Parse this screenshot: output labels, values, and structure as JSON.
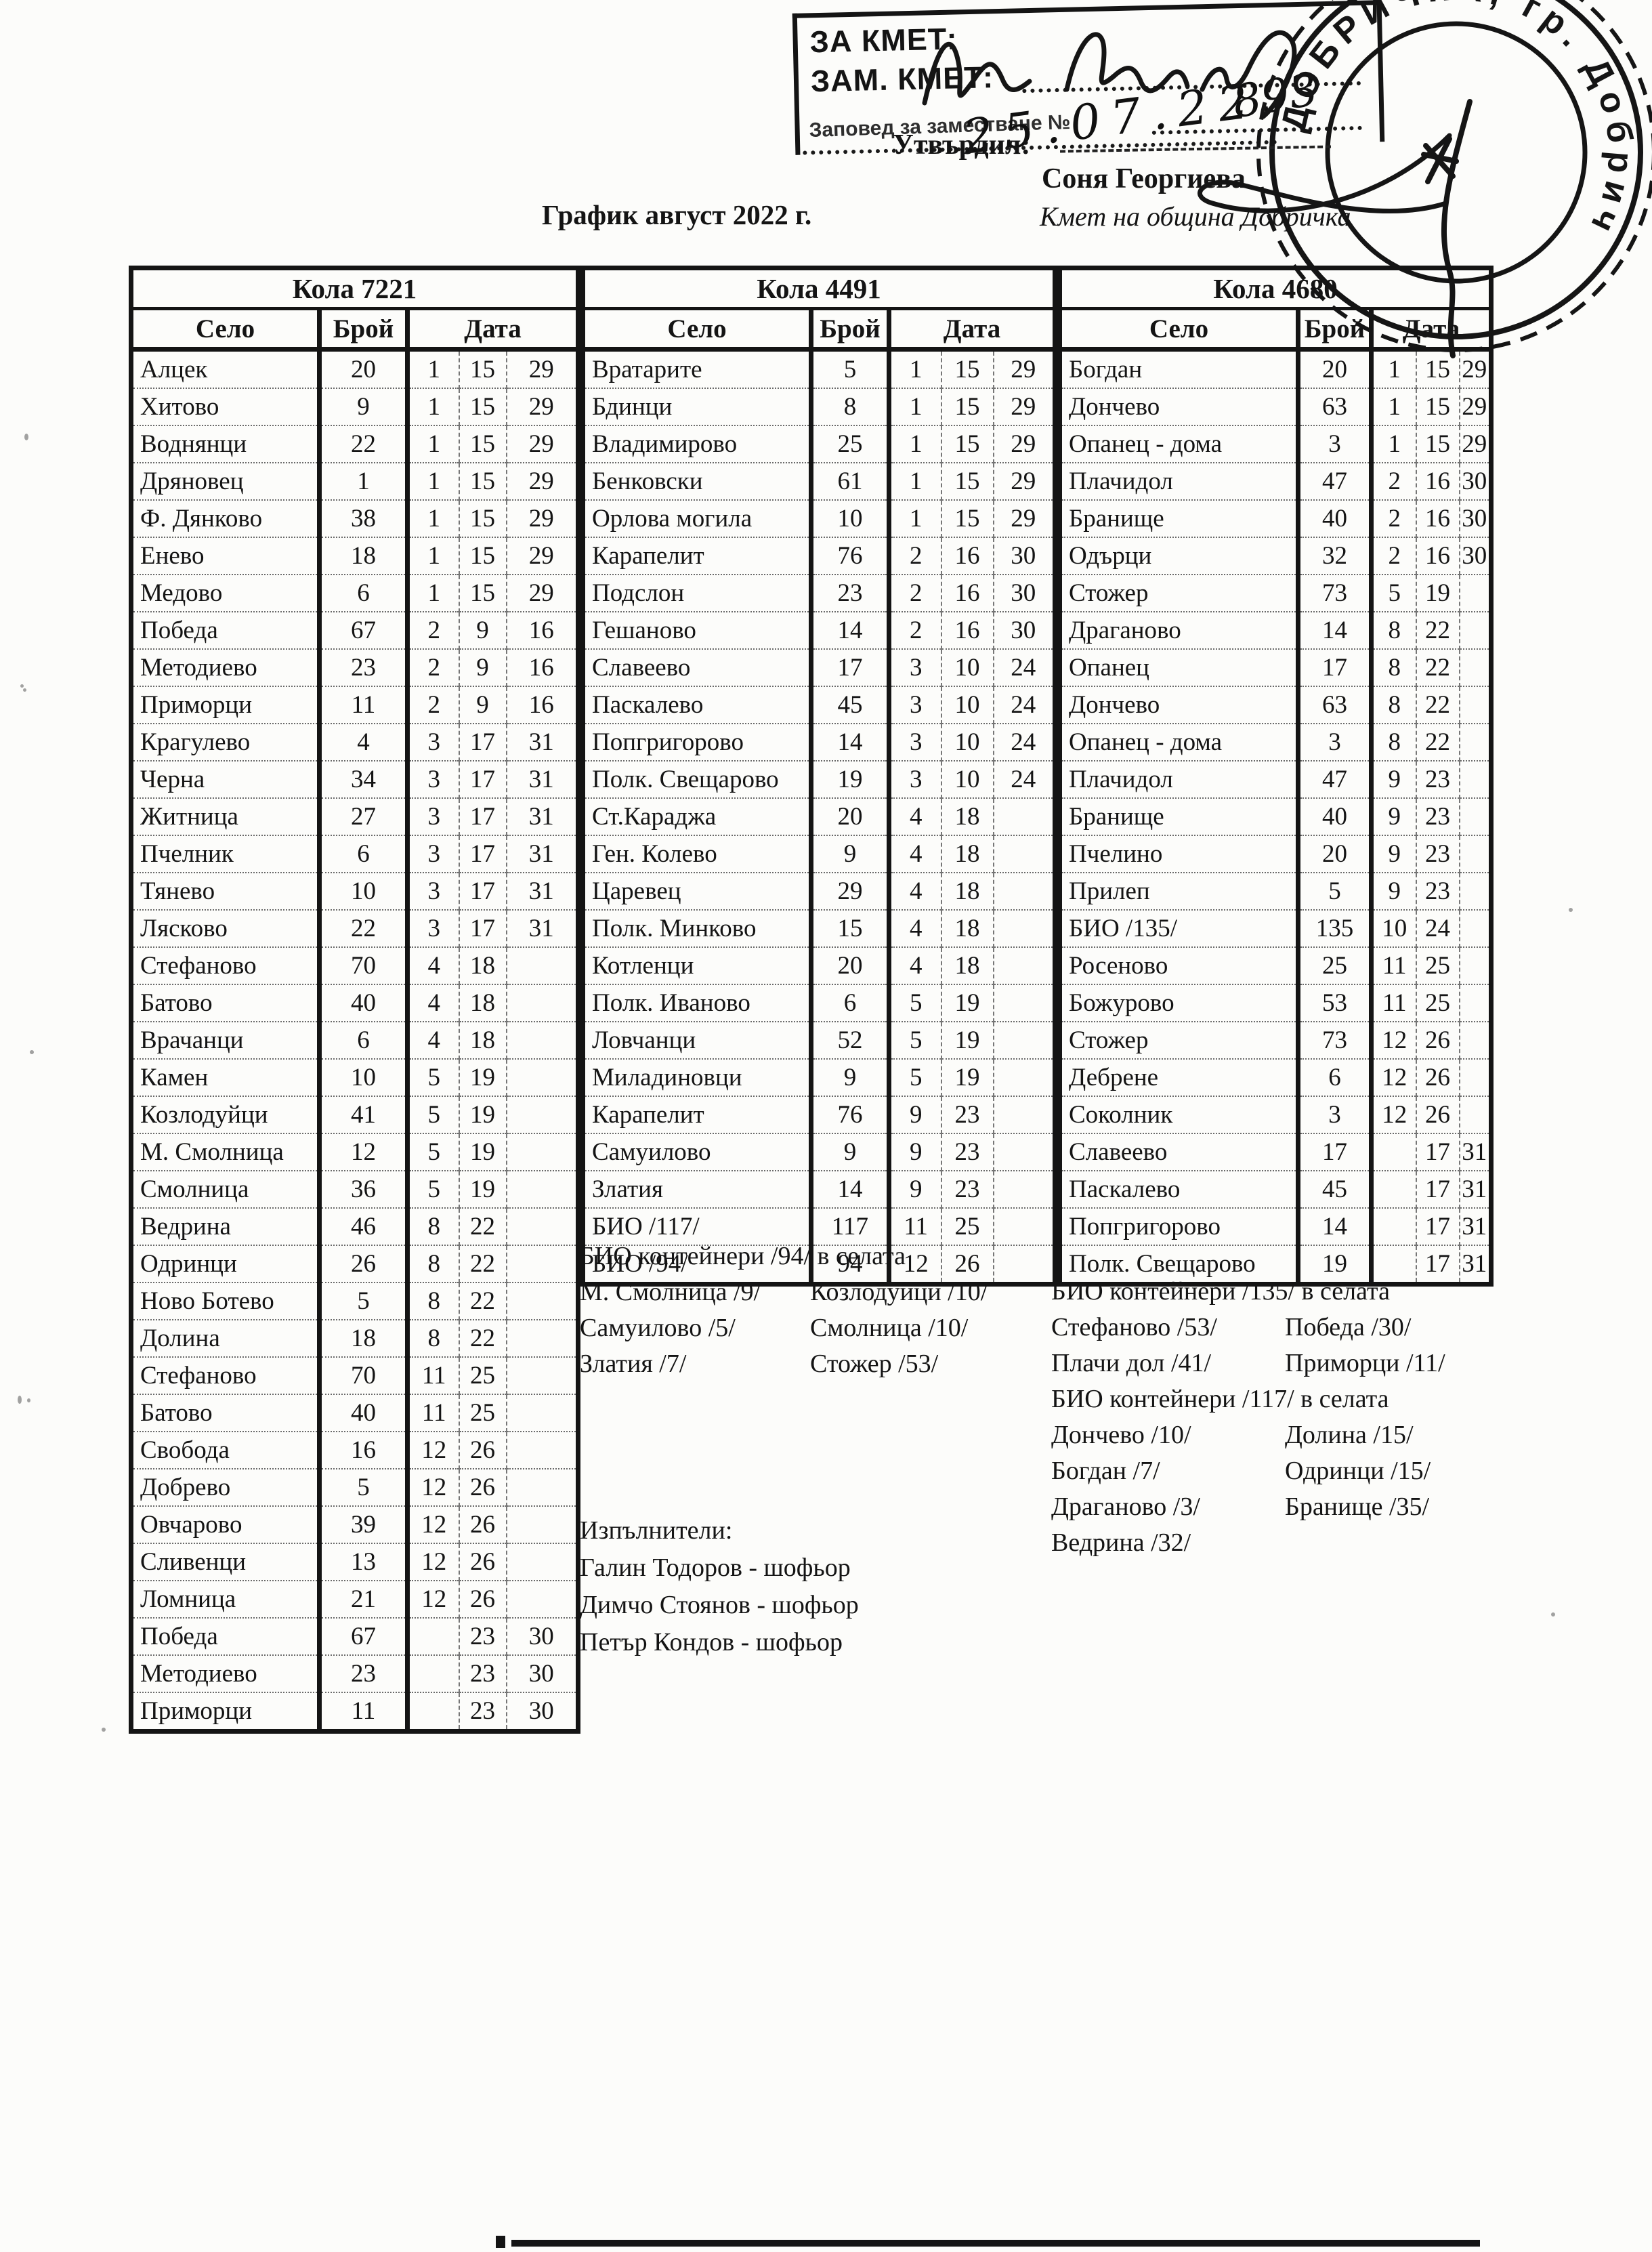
{
  "page": {
    "title": "График август 2022 г.",
    "approval": {
      "approved_label": "Утвърдил:",
      "approver_name": "Соня Георгиева",
      "approver_title": "Кмет  на община Добричка"
    },
    "stamp_box": {
      "line1": "ЗА КМЕТ:",
      "line2": "ЗАМ. КМЕТ:",
      "line3": "Заповед за заместване №",
      "handwritten_number": "893",
      "handwritten_date": "25.07.22"
    },
    "seal": {
      "text": "ДОБРИЧКА, гр. Добрич"
    }
  },
  "tables": [
    {
      "title": "Кола 7221",
      "columns": [
        "Село",
        "Брой",
        "Дата"
      ],
      "rows": [
        [
          "Алцек",
          "20",
          "1",
          "15",
          "29"
        ],
        [
          "Хитово",
          "9",
          "1",
          "15",
          "29"
        ],
        [
          "Воднянци",
          "22",
          "1",
          "15",
          "29"
        ],
        [
          "Дряновец",
          "1",
          "1",
          "15",
          "29"
        ],
        [
          "Ф. Дянково",
          "38",
          "1",
          "15",
          "29"
        ],
        [
          "Енево",
          "18",
          "1",
          "15",
          "29"
        ],
        [
          "Медово",
          "6",
          "1",
          "15",
          "29"
        ],
        [
          "Победа",
          "67",
          "2",
          "9",
          "16"
        ],
        [
          "Методиево",
          "23",
          "2",
          "9",
          "16"
        ],
        [
          "Приморци",
          "11",
          "2",
          "9",
          "16"
        ],
        [
          "Крагулево",
          "4",
          "3",
          "17",
          "31"
        ],
        [
          "Черна",
          "34",
          "3",
          "17",
          "31"
        ],
        [
          "Житница",
          "27",
          "3",
          "17",
          "31"
        ],
        [
          "Пчелник",
          "6",
          "3",
          "17",
          "31"
        ],
        [
          "Тянево",
          "10",
          "3",
          "17",
          "31"
        ],
        [
          "Лясково",
          "22",
          "3",
          "17",
          "31"
        ],
        [
          "Стефаново",
          "70",
          "4",
          "18",
          ""
        ],
        [
          "Батово",
          "40",
          "4",
          "18",
          ""
        ],
        [
          "Врачанци",
          "6",
          "4",
          "18",
          ""
        ],
        [
          "Камен",
          "10",
          "5",
          "19",
          ""
        ],
        [
          "Козлодуйци",
          "41",
          "5",
          "19",
          ""
        ],
        [
          "М. Смолница",
          "12",
          "5",
          "19",
          ""
        ],
        [
          "Смолница",
          "36",
          "5",
          "19",
          ""
        ],
        [
          "Ведрина",
          "46",
          "8",
          "22",
          ""
        ],
        [
          "Одринци",
          "26",
          "8",
          "22",
          ""
        ],
        [
          "Ново Ботево",
          "5",
          "8",
          "22",
          ""
        ],
        [
          "Долина",
          "18",
          "8",
          "22",
          ""
        ],
        [
          "Стефаново",
          "70",
          "11",
          "25",
          ""
        ],
        [
          "Батово",
          "40",
          "11",
          "25",
          ""
        ],
        [
          "Свобода",
          "16",
          "12",
          "26",
          ""
        ],
        [
          "Добрево",
          "5",
          "12",
          "26",
          ""
        ],
        [
          "Овчарово",
          "39",
          "12",
          "26",
          ""
        ],
        [
          "Сливенци",
          "13",
          "12",
          "26",
          ""
        ],
        [
          "Ломница",
          "21",
          "12",
          "26",
          ""
        ],
        [
          "Победа",
          "67",
          "",
          "23",
          "30"
        ],
        [
          "Методиево",
          "23",
          "",
          "23",
          "30"
        ],
        [
          "Приморци",
          "11",
          "",
          "23",
          "30"
        ]
      ]
    },
    {
      "title": "Кола 4491",
      "columns": [
        "Село",
        "Брой",
        "Дата"
      ],
      "rows": [
        [
          "Вратарите",
          "5",
          "1",
          "15",
          "29"
        ],
        [
          "Бдинци",
          "8",
          "1",
          "15",
          "29"
        ],
        [
          "Владимирово",
          "25",
          "1",
          "15",
          "29"
        ],
        [
          "Бенковски",
          "61",
          "1",
          "15",
          "29"
        ],
        [
          "Орлова могила",
          "10",
          "1",
          "15",
          "29"
        ],
        [
          "Карапелит",
          "76",
          "2",
          "16",
          "30"
        ],
        [
          "Подслон",
          "23",
          "2",
          "16",
          "30"
        ],
        [
          "Гешаново",
          "14",
          "2",
          "16",
          "30"
        ],
        [
          "Славеево",
          "17",
          "3",
          "10",
          "24"
        ],
        [
          "Паскалево",
          "45",
          "3",
          "10",
          "24"
        ],
        [
          "Попгригорово",
          "14",
          "3",
          "10",
          "24"
        ],
        [
          "Полк. Свещарово",
          "19",
          "3",
          "10",
          "24"
        ],
        [
          "Ст.Караджа",
          "20",
          "4",
          "18",
          ""
        ],
        [
          "Ген. Колево",
          "9",
          "4",
          "18",
          ""
        ],
        [
          "Царевец",
          "29",
          "4",
          "18",
          ""
        ],
        [
          "Полк. Минково",
          "15",
          "4",
          "18",
          ""
        ],
        [
          "Котленци",
          "20",
          "4",
          "18",
          ""
        ],
        [
          "Полк. Иваново",
          "6",
          "5",
          "19",
          ""
        ],
        [
          "Ловчанци",
          "52",
          "5",
          "19",
          ""
        ],
        [
          "Миладиновци",
          "9",
          "5",
          "19",
          ""
        ],
        [
          "Карапелит",
          "76",
          "9",
          "23",
          ""
        ],
        [
          "Самуилово",
          "9",
          "9",
          "23",
          ""
        ],
        [
          "Златия",
          "14",
          "9",
          "23",
          ""
        ],
        [
          "БИО /117/",
          "117",
          "11",
          "25",
          ""
        ],
        [
          "БИО /94/",
          "94",
          "12",
          "26",
          ""
        ]
      ]
    },
    {
      "title": "Кола 4680",
      "columns": [
        "Село",
        "Брой",
        "Дата"
      ],
      "rows": [
        [
          "Богдан",
          "20",
          "1",
          "15",
          "29"
        ],
        [
          "Дончево",
          "63",
          "1",
          "15",
          "29"
        ],
        [
          "Опанец - дома",
          "3",
          "1",
          "15",
          "29"
        ],
        [
          "Плачидол",
          "47",
          "2",
          "16",
          "30"
        ],
        [
          "Бранище",
          "40",
          "2",
          "16",
          "30"
        ],
        [
          "Одърци",
          "32",
          "2",
          "16",
          "30"
        ],
        [
          "Стожер",
          "73",
          "5",
          "19",
          ""
        ],
        [
          "Драганово",
          "14",
          "8",
          "22",
          ""
        ],
        [
          "Опанец",
          "17",
          "8",
          "22",
          ""
        ],
        [
          "Дончево",
          "63",
          "8",
          "22",
          ""
        ],
        [
          "Опанец - дома",
          "3",
          "8",
          "22",
          ""
        ],
        [
          "Плачидол",
          "47",
          "9",
          "23",
          ""
        ],
        [
          "Бранище",
          "40",
          "9",
          "23",
          ""
        ],
        [
          "Пчелино",
          "20",
          "9",
          "23",
          ""
        ],
        [
          "Прилеп",
          "5",
          "9",
          "23",
          ""
        ],
        [
          "БИО /135/",
          "135",
          "10",
          "24",
          ""
        ],
        [
          "Росеново",
          "25",
          "11",
          "25",
          ""
        ],
        [
          "Божурово",
          "53",
          "11",
          "25",
          ""
        ],
        [
          "Стожер",
          "73",
          "12",
          "26",
          ""
        ],
        [
          "Дебрене",
          "6",
          "12",
          "26",
          ""
        ],
        [
          "Соколник",
          "3",
          "12",
          "26",
          ""
        ],
        [
          "Славеево",
          "17",
          "",
          "17",
          "31"
        ],
        [
          "Паскалево",
          "45",
          "",
          "17",
          "31"
        ],
        [
          "Попгригорово",
          "14",
          "",
          "17",
          "31"
        ],
        [
          "Полк. Свещарово",
          "19",
          "",
          "17",
          "31"
        ]
      ]
    }
  ],
  "notes_middle": {
    "header": "БИО контейнери /94/ в селата",
    "items": [
      [
        "М. Смолница /9/",
        "Козлодуйци /10/"
      ],
      [
        "Самуилово /5/",
        "Смолница /10/"
      ],
      [
        "Златия /7/",
        "Стожер /53/"
      ]
    ]
  },
  "notes_right": {
    "bio135_header": "БИО контейнери /135/ в селата",
    "items135": [
      [
        "Стефаново /53/",
        "Победа /30/"
      ],
      [
        "Плачи дол /41/",
        "Приморци /11/"
      ]
    ],
    "bio117_header": "БИО контейнери /117/ в селата",
    "items117": [
      [
        "Дончево /10/",
        "Долина /15/"
      ],
      [
        "Богдан /7/",
        "Одринци /15/"
      ],
      [
        "Драганово /3/",
        "Бранище /35/"
      ],
      [
        "Ведрина /32/",
        ""
      ]
    ]
  },
  "executors": {
    "header": "Изпълнители:",
    "names": [
      "Галин Тодоров - шофьор",
      "Димчо Стоянов - шофьор",
      "Петър Кондов - шофьор"
    ]
  }
}
